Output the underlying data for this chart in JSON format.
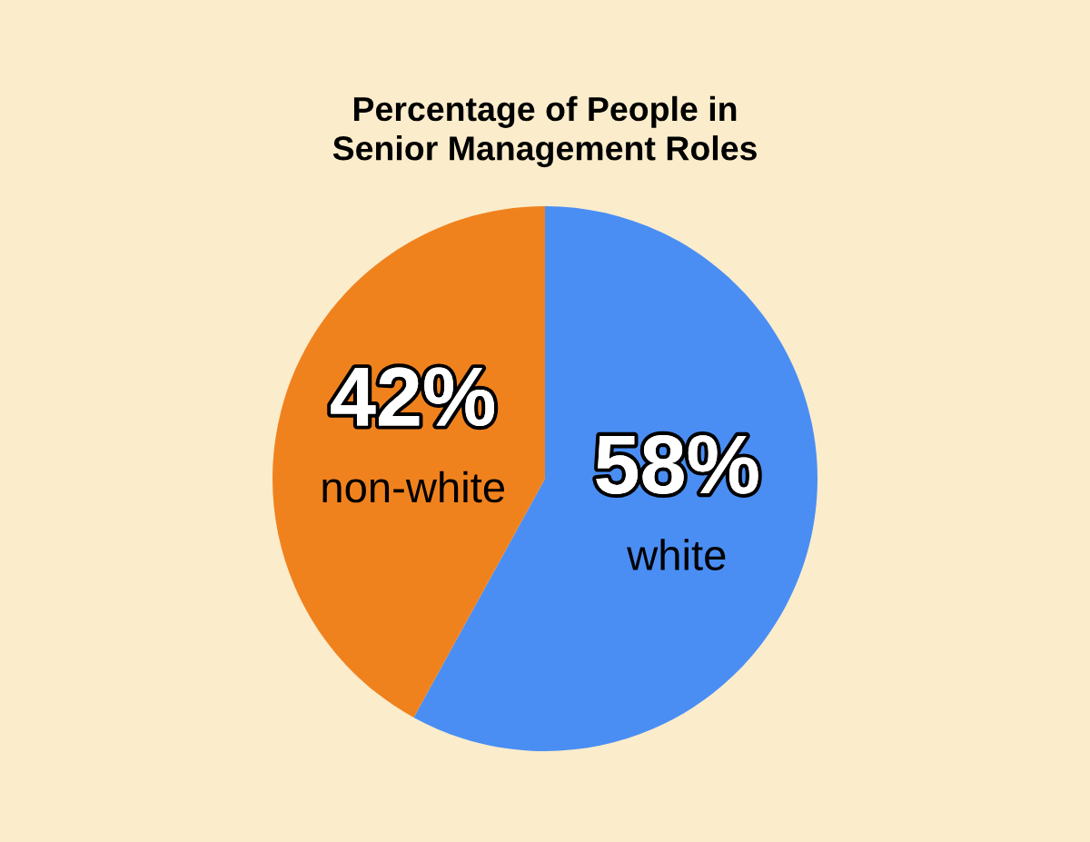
{
  "chart_data": {
    "type": "pie",
    "title": "Percentage of People in\nSenior Management Roles",
    "categories": [
      "white",
      "non-white"
    ],
    "values": [
      58,
      42
    ],
    "value_labels": [
      "58%",
      "42%"
    ],
    "colors": [
      "#4a8ef4",
      "#f0821e"
    ],
    "legend": false
  }
}
